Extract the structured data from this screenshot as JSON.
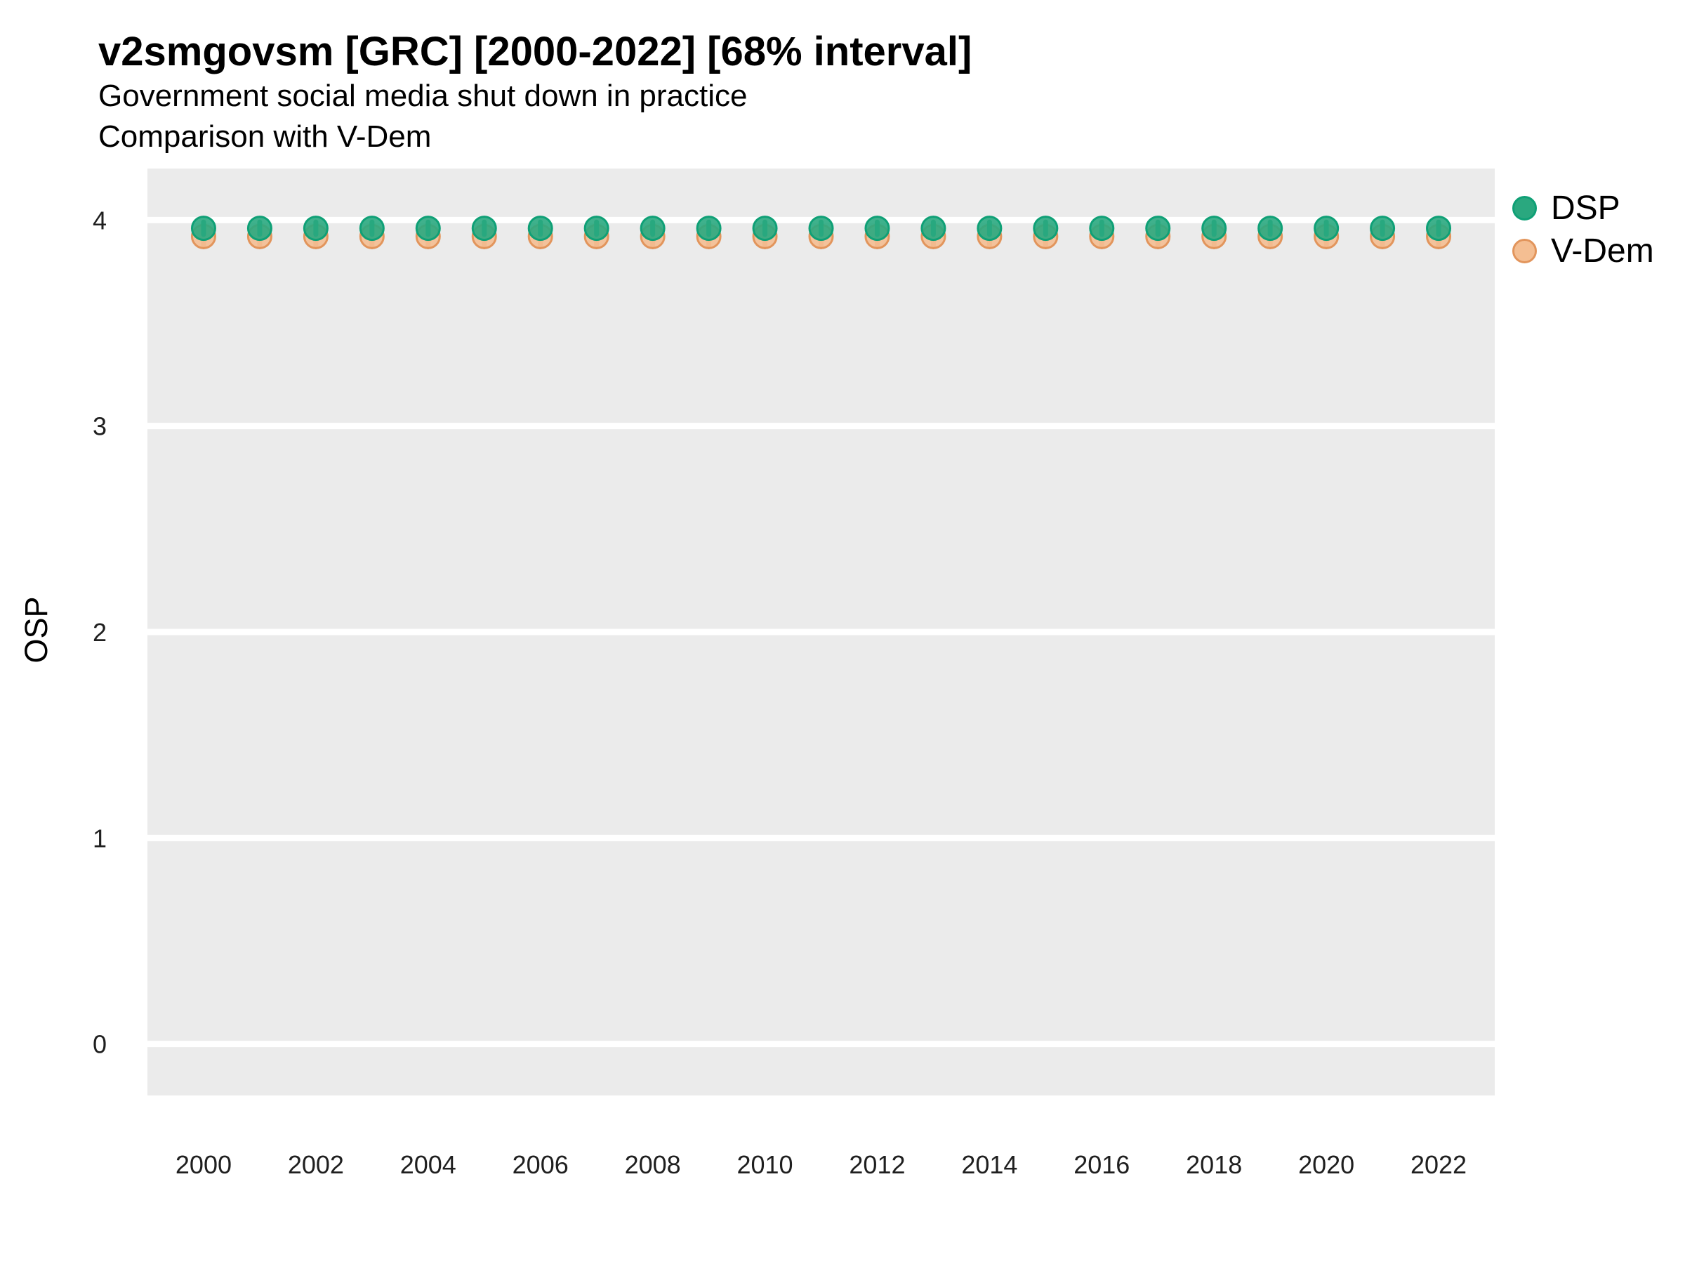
{
  "header": {
    "title": "v2smgovsm [GRC] [2000-2022] [68% interval]",
    "subtitle": "Government social media shut down in practice",
    "subtitle2": "Comparison with V-Dem"
  },
  "chart_data": {
    "type": "scatter",
    "title": "v2smgovsm [GRC] [2000-2022] [68% interval]",
    "subtitle": "Government social media shut down in practice",
    "subtitle2": "Comparison with V-Dem",
    "xlabel": "",
    "ylabel": "OSP",
    "x": [
      2000,
      2001,
      2002,
      2003,
      2004,
      2005,
      2006,
      2007,
      2008,
      2009,
      2010,
      2011,
      2012,
      2013,
      2014,
      2015,
      2016,
      2017,
      2018,
      2019,
      2020,
      2021,
      2022
    ],
    "xticks": [
      2000,
      2002,
      2004,
      2006,
      2008,
      2010,
      2012,
      2014,
      2016,
      2018,
      2020,
      2022
    ],
    "yticks": [
      0,
      1,
      2,
      3,
      4
    ],
    "xlim": [
      1999,
      2023
    ],
    "ylim": [
      -0.25,
      4.25
    ],
    "grid": "horizontal-major-only",
    "panel_bg": "#EBEBEB",
    "grid_color": "#FFFFFF",
    "legend_position": "top-right-outside",
    "interval_label": "68% interval",
    "series": [
      {
        "name": "DSP",
        "marker_fill": "#2AA87F",
        "marker_stroke": "#0FA076",
        "values": [
          3.96,
          3.96,
          3.96,
          3.96,
          3.96,
          3.96,
          3.96,
          3.96,
          3.96,
          3.96,
          3.96,
          3.96,
          3.96,
          3.96,
          3.96,
          3.96,
          3.96,
          3.96,
          3.96,
          3.96,
          3.96,
          3.96,
          3.96
        ],
        "interval_low": [
          3.93,
          3.93,
          3.93,
          3.93,
          3.93,
          3.93,
          3.93,
          3.93,
          3.93,
          3.93,
          3.93,
          3.93,
          3.93,
          3.93,
          3.93,
          3.93,
          3.93,
          3.93,
          3.93,
          3.93,
          3.93,
          3.93,
          3.93
        ],
        "interval_high": [
          3.99,
          3.99,
          3.99,
          3.99,
          3.99,
          3.99,
          3.99,
          3.99,
          3.99,
          3.99,
          3.99,
          3.99,
          3.99,
          3.99,
          3.99,
          3.99,
          3.99,
          3.99,
          3.99,
          3.99,
          3.99,
          3.99,
          3.99
        ]
      },
      {
        "name": "V-Dem",
        "marker_fill": "#F4BE92",
        "marker_stroke": "#E2955C",
        "values": [
          3.92,
          3.92,
          3.92,
          3.92,
          3.92,
          3.92,
          3.92,
          3.92,
          3.92,
          3.92,
          3.92,
          3.92,
          3.92,
          3.92,
          3.92,
          3.92,
          3.92,
          3.92,
          3.92,
          3.92,
          3.92,
          3.92,
          3.92
        ],
        "interval_low": [
          3.87,
          3.87,
          3.87,
          3.87,
          3.87,
          3.87,
          3.87,
          3.87,
          3.87,
          3.87,
          3.87,
          3.87,
          3.87,
          3.87,
          3.87,
          3.87,
          3.87,
          3.87,
          3.87,
          3.87,
          3.87,
          3.87,
          3.87
        ],
        "interval_high": [
          3.97,
          3.97,
          3.97,
          3.97,
          3.97,
          3.97,
          3.97,
          3.97,
          3.97,
          3.97,
          3.97,
          3.97,
          3.97,
          3.97,
          3.97,
          3.97,
          3.97,
          3.97,
          3.97,
          3.97,
          3.97,
          3.97,
          3.97
        ]
      }
    ]
  }
}
